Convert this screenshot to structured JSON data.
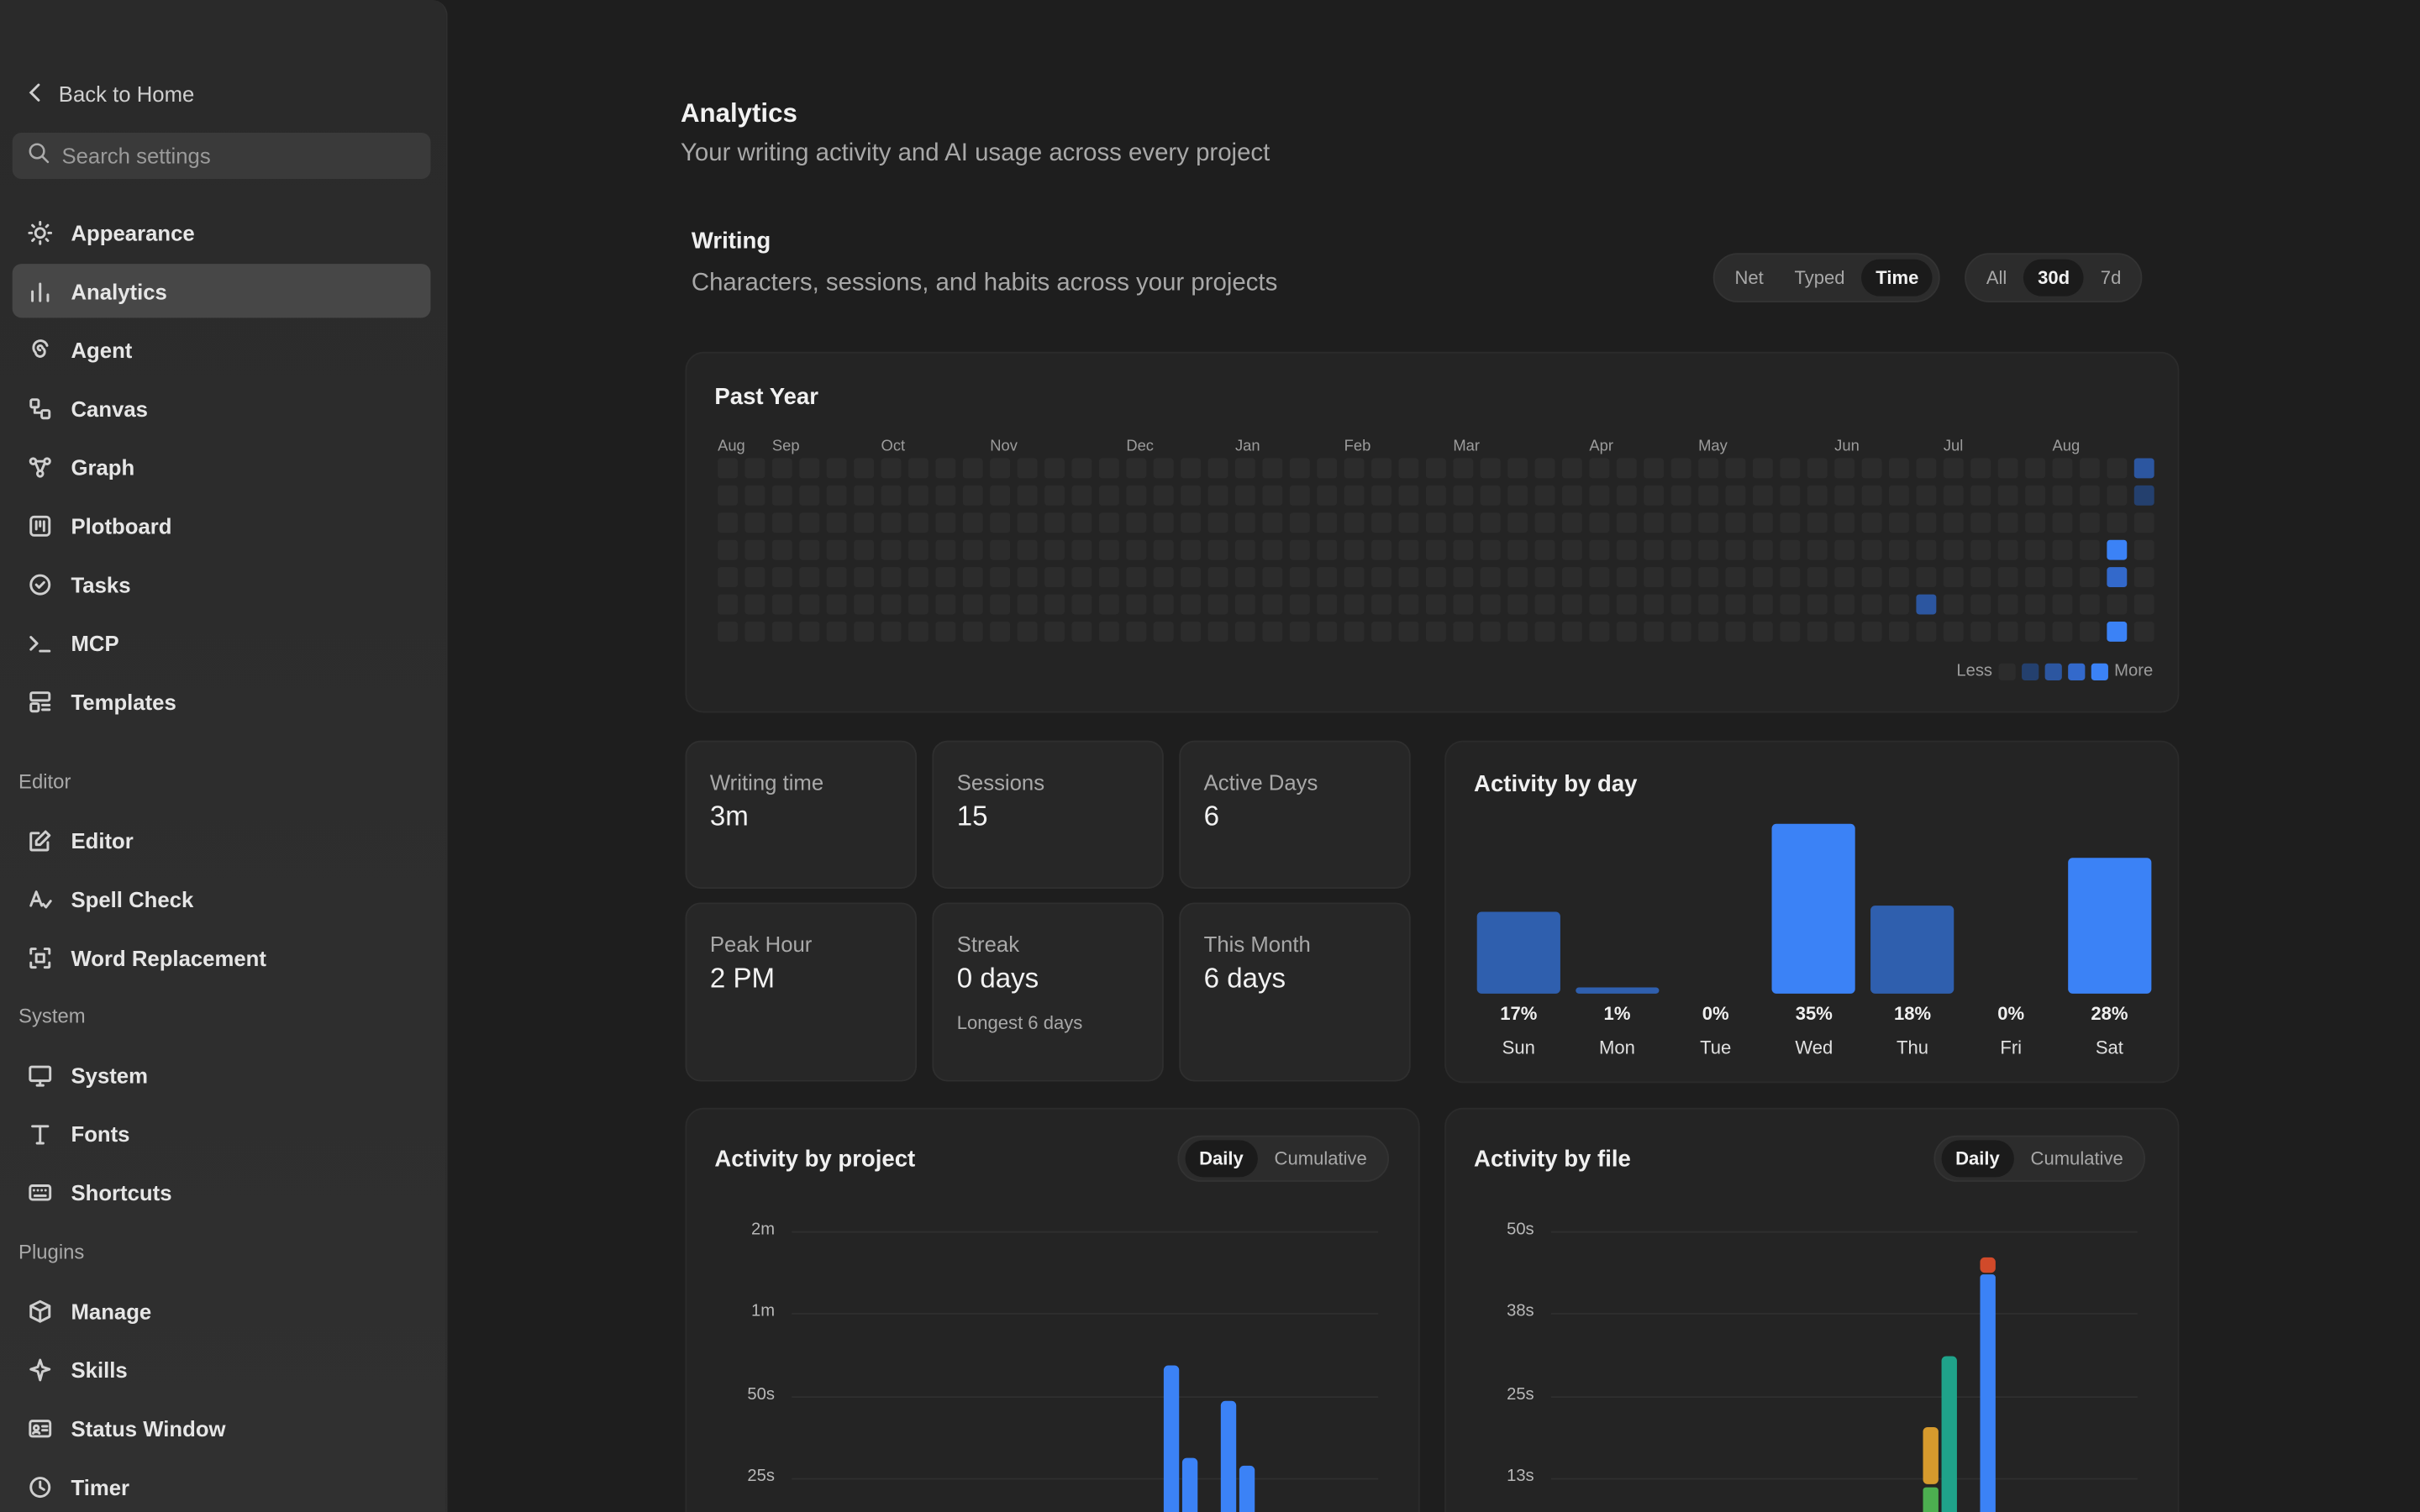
{
  "sidebar": {
    "back_label": "Back to Home",
    "search_placeholder": "Search settings",
    "items": [
      {
        "label": "Appearance",
        "icon": "sun-icon"
      },
      {
        "label": "Analytics",
        "icon": "bar-chart-icon",
        "active": true
      },
      {
        "label": "Agent",
        "icon": "spiral-icon"
      },
      {
        "label": "Canvas",
        "icon": "canvas-icon"
      },
      {
        "label": "Graph",
        "icon": "graph-icon"
      },
      {
        "label": "Plotboard",
        "icon": "plotboard-icon"
      },
      {
        "label": "Tasks",
        "icon": "check-circle-icon"
      },
      {
        "label": "MCP",
        "icon": "terminal-icon"
      },
      {
        "label": "Templates",
        "icon": "templates-icon"
      }
    ],
    "editor_section": "Editor",
    "editor_items": [
      {
        "label": "Editor",
        "icon": "edit-icon"
      },
      {
        "label": "Spell Check",
        "icon": "spell-check-icon"
      },
      {
        "label": "Word Replacement",
        "icon": "replace-icon"
      }
    ],
    "system_section": "System",
    "system_items": [
      {
        "label": "System",
        "icon": "monitor-icon"
      },
      {
        "label": "Fonts",
        "icon": "type-icon"
      },
      {
        "label": "Shortcuts",
        "icon": "keyboard-icon"
      }
    ],
    "plugins_section": "Plugins",
    "plugins_items": [
      {
        "label": "Manage",
        "icon": "box-icon"
      },
      {
        "label": "Skills",
        "icon": "sparkle-icon"
      },
      {
        "label": "Status Window",
        "icon": "id-card-icon"
      },
      {
        "label": "Timer",
        "icon": "clock-icon"
      }
    ]
  },
  "main": {
    "title": "Analytics",
    "subtitle": "Your writing activity and AI usage across every project",
    "writing_title": "Writing",
    "writing_sub": "Characters, sessions, and habits across your projects",
    "metric_options": [
      "Net",
      "Typed",
      "Time"
    ],
    "metric_selected": "Time",
    "range_options": [
      "All",
      "30d",
      "7d"
    ],
    "range_selected": "30d"
  },
  "heatmap": {
    "title": "Past Year",
    "months": [
      "Aug",
      "Sep",
      "Oct",
      "Nov",
      "Dec",
      "Jan",
      "Feb",
      "Mar",
      "Apr",
      "May",
      "Jun",
      "Jul",
      "Aug"
    ],
    "legend_less": "Less",
    "legend_more": "More",
    "active_cells": [
      {
        "week": 52,
        "day": 0,
        "level": 2
      },
      {
        "week": 52,
        "day": 1,
        "level": 1
      },
      {
        "week": 51,
        "day": 3,
        "level": 4
      },
      {
        "week": 51,
        "day": 4,
        "level": 3
      },
      {
        "week": 44,
        "day": 5,
        "level": 2
      },
      {
        "week": 51,
        "day": 6,
        "level": 4
      }
    ]
  },
  "stats": [
    {
      "label": "Writing time",
      "value": "3m"
    },
    {
      "label": "Sessions",
      "value": "15"
    },
    {
      "label": "Active Days",
      "value": "6"
    },
    {
      "label": "Peak Hour",
      "value": "2 PM"
    },
    {
      "label": "Streak",
      "value": "0 days",
      "note": "Longest 6 days"
    },
    {
      "label": "This Month",
      "value": "6 days"
    }
  ],
  "activity_by_day": {
    "title": "Activity by day",
    "days": [
      "Sun",
      "Mon",
      "Tue",
      "Wed",
      "Thu",
      "Fri",
      "Sat"
    ],
    "pct_labels": [
      "17%",
      "1%",
      "0%",
      "35%",
      "18%",
      "0%",
      "28%"
    ],
    "values": [
      17,
      1,
      0,
      35,
      18,
      0,
      28
    ]
  },
  "activity_by_project": {
    "title": "Activity by project",
    "modes": [
      "Daily",
      "Cumulative"
    ],
    "mode_selected": "Daily",
    "y_ticks": [
      "2m",
      "1m",
      "50s",
      "25s"
    ]
  },
  "activity_by_file": {
    "title": "Activity by file",
    "modes": [
      "Daily",
      "Cumulative"
    ],
    "mode_selected": "Daily",
    "y_ticks": [
      "50s",
      "38s",
      "25s",
      "13s"
    ]
  },
  "colors": {
    "accent": "#3b82f6",
    "accent_dim": "#2f5fae",
    "empty_cell": "#2c2c2c",
    "file_orange": "#d69a2d",
    "file_green": "#4caf50",
    "file_teal": "#1fa38a",
    "file_red": "#d14a2a"
  }
}
